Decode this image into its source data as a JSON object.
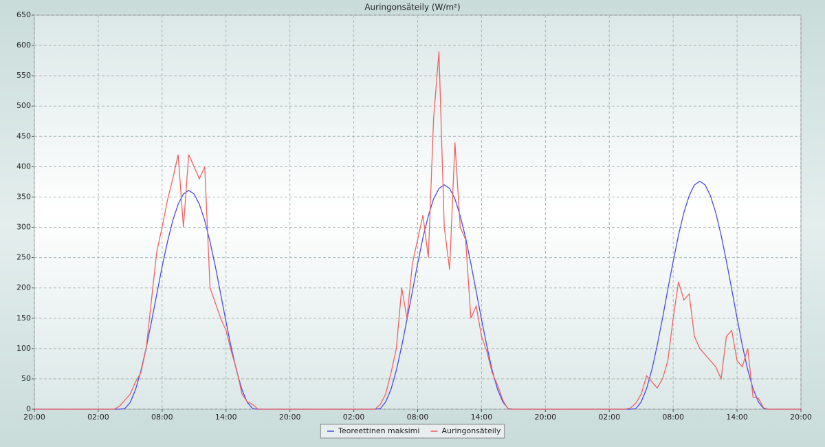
{
  "chart_data": {
    "type": "line",
    "title": "Auringonsäteily (W/m²)",
    "x": [
      0,
      0.5,
      1,
      1.5,
      2,
      2.5,
      3,
      3.5,
      4,
      4.5,
      5,
      5.5,
      6,
      6.5,
      7,
      7.5,
      8,
      8.5,
      9,
      9.5,
      10,
      10.5,
      11,
      11.5,
      12,
      12.5,
      13,
      13.5,
      14,
      14.5,
      15,
      15.5,
      16,
      16.5,
      17,
      17.5,
      18,
      18.5,
      19,
      19.5,
      20,
      20.5,
      21,
      21.5,
      22,
      22.5,
      23,
      23.5,
      24,
      24.5,
      25,
      25.5,
      26,
      26.5,
      27,
      27.5,
      28,
      28.5,
      29,
      29.5,
      30,
      30.5,
      31,
      31.5,
      32,
      32.5,
      33,
      33.5,
      34,
      34.5,
      35,
      35.5,
      36,
      36.5,
      37,
      37.5,
      38,
      38.5,
      39,
      39.5,
      40,
      40.5,
      41,
      41.5,
      42,
      42.5,
      43,
      43.5,
      44,
      44.5,
      45,
      45.5,
      46,
      46.5,
      47,
      47.5,
      48,
      48.5,
      49,
      49.5,
      50,
      50.5,
      51,
      51.5,
      52,
      52.5,
      53,
      53.5,
      54,
      54.5,
      55,
      55.5,
      56,
      56.5,
      57,
      57.5,
      58,
      58.5,
      59,
      59.5,
      60,
      60.5,
      61,
      61.5,
      62,
      62.5,
      63,
      63.5,
      64,
      64.5,
      65,
      65.5,
      66,
      66.5,
      67,
      67.5,
      68,
      68.5,
      69,
      69.5,
      70,
      70.5,
      71,
      71.5,
      72
    ],
    "series": [
      {
        "name": "Teoreettinen maksimi",
        "color": "#4a4ae6",
        "values": [
          0,
          0,
          0,
          0,
          0,
          0,
          0,
          0,
          0,
          0,
          0,
          0,
          0,
          0,
          0,
          0,
          0,
          1,
          11,
          32,
          63,
          101,
          144,
          190,
          235,
          276,
          311,
          338,
          355,
          361,
          355,
          338,
          311,
          276,
          235,
          190,
          144,
          101,
          63,
          32,
          11,
          1,
          0,
          0,
          0,
          0,
          0,
          0,
          0,
          0,
          0,
          0,
          0,
          0,
          0,
          0,
          0,
          0,
          0,
          0,
          0,
          0,
          0,
          0,
          0,
          1,
          12,
          33,
          64,
          104,
          148,
          194,
          240,
          283,
          319,
          347,
          364,
          370,
          364,
          347,
          319,
          283,
          240,
          194,
          148,
          104,
          64,
          33,
          12,
          1,
          0,
          0,
          0,
          0,
          0,
          0,
          0,
          0,
          0,
          0,
          0,
          0,
          0,
          0,
          0,
          0,
          0,
          0,
          0,
          0,
          0,
          0,
          0,
          1,
          12,
          34,
          65,
          105,
          150,
          198,
          244,
          287,
          324,
          352,
          370,
          376,
          370,
          352,
          324,
          287,
          244,
          198,
          150,
          105,
          65,
          34,
          12,
          1,
          0,
          0,
          0,
          0,
          0,
          0,
          0
        ]
      },
      {
        "name": "Auringonsäteily",
        "color": "#f06262",
        "values": [
          0,
          0,
          0,
          0,
          0,
          0,
          0,
          0,
          0,
          0,
          0,
          0,
          0,
          0,
          0,
          0,
          5,
          15,
          25,
          45,
          60,
          100,
          180,
          260,
          300,
          345,
          380,
          420,
          300,
          420,
          400,
          380,
          400,
          200,
          175,
          150,
          130,
          95,
          65,
          25,
          12,
          8,
          0,
          0,
          0,
          0,
          0,
          0,
          0,
          0,
          0,
          0,
          0,
          0,
          0,
          0,
          0,
          0,
          0,
          0,
          0,
          0,
          0,
          0,
          0,
          8,
          25,
          60,
          100,
          200,
          150,
          240,
          280,
          320,
          250,
          480,
          590,
          300,
          230,
          440,
          300,
          280,
          150,
          170,
          120,
          95,
          60,
          40,
          15,
          0,
          0,
          0,
          0,
          0,
          0,
          0,
          0,
          0,
          0,
          0,
          0,
          0,
          0,
          0,
          0,
          0,
          0,
          0,
          0,
          0,
          0,
          0,
          2,
          10,
          25,
          55,
          45,
          35,
          50,
          80,
          150,
          210,
          180,
          190,
          120,
          100,
          90,
          80,
          70,
          50,
          120,
          130,
          80,
          70,
          100,
          20,
          18,
          2,
          0,
          0,
          0,
          0,
          0,
          0,
          0
        ]
      }
    ],
    "xlim": [
      0,
      72
    ],
    "xticks": [
      {
        "value": 0,
        "label": "20:00"
      },
      {
        "value": 6,
        "label": "02:00"
      },
      {
        "value": 12,
        "label": "08:00"
      },
      {
        "value": 18,
        "label": "14:00"
      },
      {
        "value": 24,
        "label": "20:00"
      },
      {
        "value": 30,
        "label": "02:00"
      },
      {
        "value": 36,
        "label": "08:00"
      },
      {
        "value": 42,
        "label": "14:00"
      },
      {
        "value": 48,
        "label": "20:00"
      },
      {
        "value": 54,
        "label": "02:00"
      },
      {
        "value": 60,
        "label": "08:00"
      },
      {
        "value": 66,
        "label": "14:00"
      },
      {
        "value": 72,
        "label": "20:00"
      }
    ],
    "ylim": [
      0,
      650
    ],
    "yticks": [
      0,
      50,
      100,
      150,
      200,
      250,
      300,
      350,
      400,
      450,
      500,
      550,
      600,
      650
    ],
    "grid": true,
    "legend": "bottom"
  }
}
